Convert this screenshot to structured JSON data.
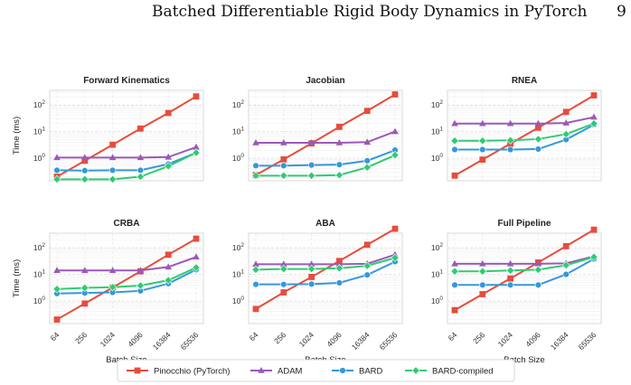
{
  "header": {
    "running_title": "Batched Differentiable Rigid Body Dynamics in PyTorch",
    "page_number": "9"
  },
  "legend": {
    "placement": "bottom-center",
    "entries": [
      "Pinocchio (PyTorch)",
      "ADAM",
      "BARD",
      "BARD-compiled"
    ]
  },
  "colors": {
    "Pinocchio (PyTorch)": "#e74c3c",
    "ADAM": "#9b59b6",
    "BARD": "#3498db",
    "BARD-compiled": "#2ecc71"
  },
  "markers": {
    "Pinocchio (PyTorch)": "square",
    "ADAM": "triangle",
    "BARD": "circle",
    "BARD-compiled": "diamond"
  },
  "chart_data": [
    {
      "type": "line",
      "title": "Forward Kinematics",
      "yscale": "log",
      "grid": true,
      "xlabel": "",
      "ylabel": "Time (ms)",
      "categories": [
        "64",
        "256",
        "1024",
        "4096",
        "16384",
        "65536"
      ],
      "ytick_labels": [
        "10^0",
        "10^1",
        "10^2"
      ],
      "series": [
        {
          "name": "Pinocchio (PyTorch)",
          "values": [
            0.2,
            0.8,
            3.2,
            13,
            50,
            210
          ]
        },
        {
          "name": "ADAM",
          "values": [
            1.05,
            1.05,
            1.05,
            1.05,
            1.1,
            2.6
          ]
        },
        {
          "name": "BARD",
          "values": [
            0.35,
            0.34,
            0.35,
            0.35,
            0.6,
            1.6
          ]
        },
        {
          "name": "BARD-compiled",
          "values": [
            0.16,
            0.16,
            0.16,
            0.2,
            0.5,
            1.6
          ]
        }
      ]
    },
    {
      "type": "line",
      "title": "Jacobian",
      "yscale": "log",
      "grid": true,
      "xlabel": "",
      "ylabel": "",
      "categories": [
        "64",
        "256",
        "1024",
        "4096",
        "16384",
        "65536"
      ],
      "ytick_labels": [
        "10^0",
        "10^1",
        "10^2"
      ],
      "series": [
        {
          "name": "Pinocchio (PyTorch)",
          "values": [
            0.23,
            0.9,
            3.6,
            15,
            60,
            250
          ]
        },
        {
          "name": "ADAM",
          "values": [
            3.8,
            3.8,
            3.8,
            3.8,
            4.0,
            10
          ]
        },
        {
          "name": "BARD",
          "values": [
            0.52,
            0.52,
            0.55,
            0.57,
            0.8,
            2.0
          ]
        },
        {
          "name": "BARD-compiled",
          "values": [
            0.22,
            0.22,
            0.22,
            0.23,
            0.45,
            1.3
          ]
        }
      ]
    },
    {
      "type": "line",
      "title": "RNEA",
      "yscale": "log",
      "grid": true,
      "xlabel": "",
      "ylabel": "",
      "categories": [
        "64",
        "256",
        "1024",
        "4096",
        "16384",
        "65536"
      ],
      "ytick_labels": [
        "10^0",
        "10^1",
        "10^2"
      ],
      "series": [
        {
          "name": "Pinocchio (PyTorch)",
          "values": [
            0.22,
            0.88,
            3.5,
            14,
            55,
            230
          ]
        },
        {
          "name": "ADAM",
          "values": [
            20,
            20,
            20,
            20,
            21,
            35
          ]
        },
        {
          "name": "BARD",
          "values": [
            2.1,
            2.1,
            2.1,
            2.2,
            5.0,
            18
          ]
        },
        {
          "name": "BARD-compiled",
          "values": [
            4.5,
            4.5,
            4.7,
            5.2,
            8.0,
            20
          ]
        }
      ]
    },
    {
      "type": "line",
      "title": "CRBA",
      "yscale": "log",
      "grid": true,
      "xlabel": "Batch Size",
      "ylabel": "Time (ms)",
      "categories": [
        "64",
        "256",
        "1024",
        "4096",
        "16384",
        "65536"
      ],
      "ytick_labels": [
        "10^0",
        "10^1",
        "10^2"
      ],
      "series": [
        {
          "name": "Pinocchio (PyTorch)",
          "values": [
            0.2,
            0.8,
            3.2,
            13,
            55,
            220
          ]
        },
        {
          "name": "ADAM",
          "values": [
            14,
            14,
            14,
            14,
            19,
            45
          ]
        },
        {
          "name": "BARD",
          "values": [
            1.9,
            2.0,
            2.1,
            2.4,
            4.5,
            15
          ]
        },
        {
          "name": "BARD-compiled",
          "values": [
            2.8,
            3.1,
            3.3,
            3.8,
            6.0,
            18
          ]
        }
      ]
    },
    {
      "type": "line",
      "title": "ABA",
      "yscale": "log",
      "grid": true,
      "xlabel": "Batch Size",
      "ylabel": "",
      "categories": [
        "64",
        "256",
        "1024",
        "4096",
        "16384",
        "65536"
      ],
      "ytick_labels": [
        "10^0",
        "10^1",
        "10^2"
      ],
      "series": [
        {
          "name": "Pinocchio (PyTorch)",
          "values": [
            0.5,
            2.1,
            8,
            32,
            130,
            520
          ]
        },
        {
          "name": "ADAM",
          "values": [
            24,
            24,
            24,
            24,
            25,
            55
          ]
        },
        {
          "name": "BARD",
          "values": [
            4.2,
            4.2,
            4.3,
            4.8,
            9.5,
            30
          ]
        },
        {
          "name": "BARD-compiled",
          "values": [
            15,
            16,
            16,
            17,
            21,
            42
          ]
        }
      ]
    },
    {
      "type": "line",
      "title": "Full Pipeline",
      "yscale": "log",
      "grid": true,
      "xlabel": "Batch Size",
      "ylabel": "",
      "categories": [
        "64",
        "256",
        "1024",
        "4096",
        "16384",
        "65536"
      ],
      "ytick_labels": [
        "10^0",
        "10^1",
        "10^2"
      ],
      "series": [
        {
          "name": "Pinocchio (PyTorch)",
          "values": [
            0.45,
            1.8,
            7,
            28,
            115,
            480
          ]
        },
        {
          "name": "ADAM",
          "values": [
            25,
            25,
            25,
            25,
            26,
            48
          ]
        },
        {
          "name": "BARD",
          "values": [
            4.0,
            4.0,
            4.0,
            4.0,
            10,
            38
          ]
        },
        {
          "name": "BARD-compiled",
          "values": [
            13,
            13,
            14,
            15,
            22,
            45
          ]
        }
      ]
    }
  ]
}
